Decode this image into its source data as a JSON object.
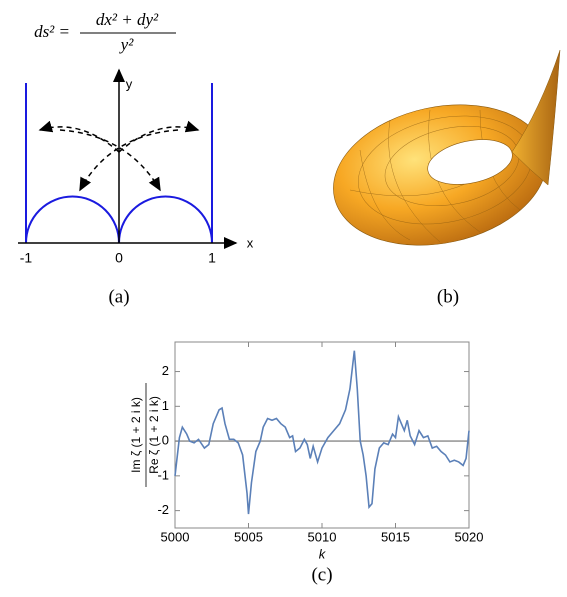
{
  "formula": {
    "lhs": "ds² =",
    "numerator": "dx² + dy²",
    "denominator": "y²"
  },
  "panel_a": {
    "ticks": [
      -1,
      0,
      1
    ],
    "x_label": "x",
    "y_label": "y",
    "caption": "(a)"
  },
  "panel_b": {
    "caption": "(b)"
  },
  "chart_data": {
    "type": "line",
    "caption": "(c)",
    "xlabel": "k",
    "ylabel_numerator": "Im ζ (1 + 2 i k)",
    "ylabel_denominator": "Re ζ (1 + 2 i k)",
    "color": "#5b80b8",
    "hline": 0,
    "hline_color": "#888888",
    "xlim": [
      5000,
      5020
    ],
    "ylim": [
      -2.5,
      2.85
    ],
    "xticks": [
      5000,
      5005,
      5010,
      5015,
      5020
    ],
    "yticks": [
      -2,
      -1,
      0,
      1,
      2
    ],
    "x": [
      5000,
      5000.3,
      5000.5,
      5000.8,
      5001,
      5001.3,
      5001.6,
      5002,
      5002.3,
      5002.6,
      5003,
      5003.2,
      5003.4,
      5003.7,
      5004,
      5004.3,
      5004.6,
      5004.9,
      5005,
      5005.2,
      5005.5,
      5005.8,
      5006,
      5006.3,
      5006.6,
      5006.9,
      5007.2,
      5007.5,
      5007.8,
      5008,
      5008.2,
      5008.5,
      5008.8,
      5009,
      5009.2,
      5009.4,
      5009.7,
      5010,
      5010.4,
      5010.8,
      5011.2,
      5011.6,
      5011.9,
      5012.2,
      5012.4,
      5012.6,
      5012.8,
      5013,
      5013.2,
      5013.4,
      5013.6,
      5013.9,
      5014.2,
      5014.5,
      5014.8,
      5015,
      5015.2,
      5015.4,
      5015.6,
      5015.8,
      5016,
      5016.3,
      5016.6,
      5016.9,
      5017.2,
      5017.5,
      5017.8,
      5018.1,
      5018.4,
      5018.7,
      5019,
      5019.3,
      5019.6,
      5019.8,
      5020
    ],
    "values": [
      -1.0,
      0.1,
      0.4,
      0.2,
      0.0,
      -0.05,
      0.05,
      -0.2,
      -0.1,
      0.5,
      0.9,
      0.95,
      0.5,
      0.05,
      0.05,
      -0.05,
      -0.4,
      -1.5,
      -2.1,
      -1.2,
      -0.3,
      0.0,
      0.4,
      0.65,
      0.6,
      0.65,
      0.5,
      0.4,
      0.1,
      0.15,
      -0.3,
      -0.2,
      0.05,
      -0.1,
      -0.5,
      -0.15,
      -0.6,
      -0.2,
      0.1,
      0.3,
      0.5,
      0.9,
      1.5,
      2.6,
      1.5,
      0.0,
      -0.4,
      -1.0,
      -1.9,
      -1.8,
      -0.8,
      -0.2,
      -0.05,
      -0.1,
      0.2,
      0.1,
      0.7,
      0.5,
      0.3,
      0.6,
      0.15,
      -0.1,
      0.3,
      0.1,
      0.15,
      -0.2,
      -0.15,
      -0.3,
      -0.4,
      -0.6,
      -0.55,
      -0.6,
      -0.7,
      -0.5,
      0.3
    ]
  }
}
